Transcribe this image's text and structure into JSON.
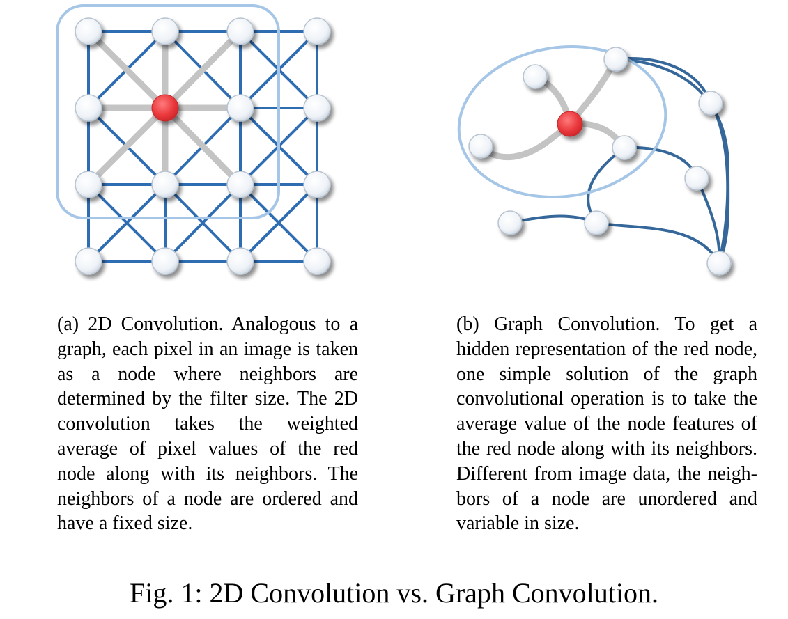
{
  "panel_a": {
    "caption": "(a) 2D Convolution. Analogous to a graph, each pixel in an image is taken as a node where neigh­bors are determined by the filter size. The 2D convolution takes the weighted average of pixel val­ues of the red node along with its neighbors. The neighbors of a node are ordered and have a fixed size."
  },
  "panel_b": {
    "caption": "(b) Graph Convolution. To get a hidden representation of the red node, one simple solution of the graph convolutional operation is to take the average value of the node features of the red node along with its neighbors. Differ­ent from image data, the neigh­bors of a node are unordered and variable in size."
  },
  "figure_caption": "Fig. 1: 2D Convolution vs. Graph Convolution.",
  "colors": {
    "grid_edge": "#2f6db3",
    "graph_edge": "#35679a",
    "highlight_edge": "#c4c4c4",
    "receptive_region": "#a5c6e6",
    "node_fill": "#f4f7fb",
    "node_stroke": "#b7c3d0",
    "red_node": "#e8363a"
  }
}
